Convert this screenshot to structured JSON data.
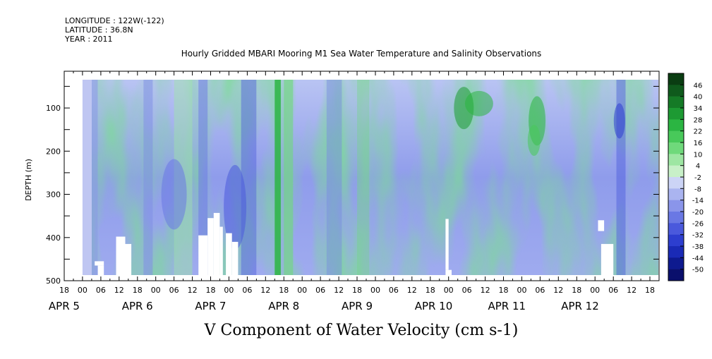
{
  "header": {
    "longitude": "LONGITUDE : 122W(-122)",
    "latitude": "LATITUDE : 36.8N",
    "year": "YEAR : 2011"
  },
  "chart_data": {
    "type": "heatmap",
    "title": "Hourly Gridded MBARI Mooring M1 Sea Water Temperature and Salinity Observations",
    "ylabel": "DEPTH (m)",
    "xlabel": "V Component of Water Velocity (cm s-1)",
    "ylim": [
      500,
      15
    ],
    "y_ticks": [
      100,
      200,
      300,
      400,
      500
    ],
    "x_hour_labels": [
      "18",
      "00",
      "06",
      "12",
      "18",
      "00",
      "06",
      "12",
      "18",
      "00",
      "06",
      "12",
      "18",
      "00",
      "06",
      "12",
      "18",
      "00",
      "06",
      "12",
      "18",
      "00",
      "06",
      "12",
      "18",
      "00",
      "06",
      "12",
      "18",
      "00",
      "06",
      "12",
      "18"
    ],
    "x_date_labels": [
      {
        "label": "APR  5",
        "hours": 0
      },
      {
        "label": "APR  6",
        "hours": 24
      },
      {
        "label": "APR  7",
        "hours": 48
      },
      {
        "label": "APR  8",
        "hours": 72
      },
      {
        "label": "APR  9",
        "hours": 96
      },
      {
        "label": "APR 10",
        "hours": 120
      },
      {
        "label": "APR 11",
        "hours": 144
      },
      {
        "label": "APR 12",
        "hours": 168
      }
    ],
    "colorbar": {
      "levels": [
        46,
        40,
        34,
        28,
        22,
        16,
        10,
        4,
        -2,
        -8,
        -14,
        -20,
        -26,
        -32,
        -38,
        -44,
        -50
      ],
      "colors": [
        "#0a3d12",
        "#0f5a1c",
        "#157a26",
        "#1d9a33",
        "#2bb542",
        "#48c95a",
        "#6fd97b",
        "#9ee6a3",
        "#c8f0c8",
        "#ccd4f6",
        "#aab4f0",
        "#8a95ea",
        "#6a78e4",
        "#4a59dc",
        "#2d3ecf",
        "#1a2ab6",
        "#0e1a8f",
        "#0a0f6c"
      ]
    },
    "grid": false,
    "legend": "right colorbar"
  }
}
